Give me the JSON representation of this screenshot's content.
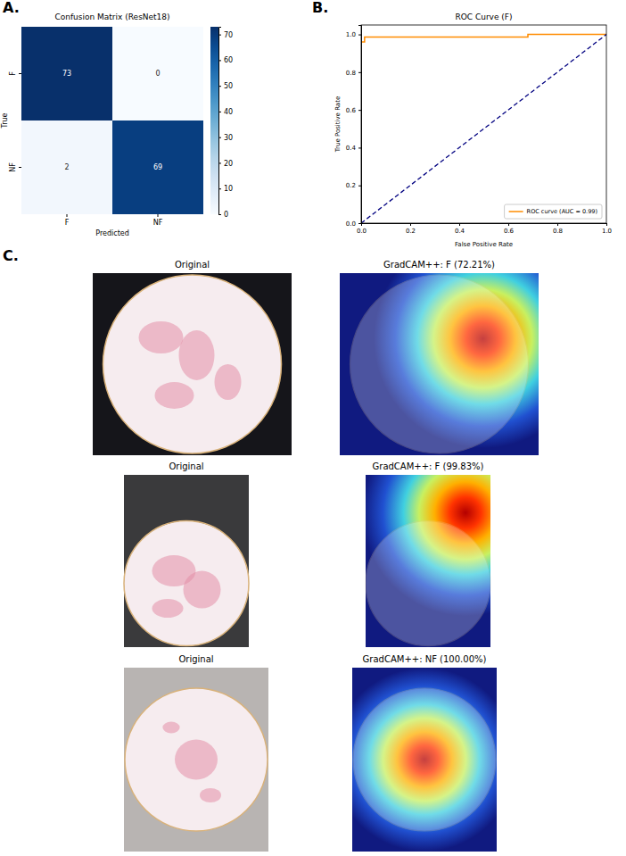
{
  "chart_data": [
    {
      "type": "heatmap",
      "title": "Confusion Matrix (ResNet18)",
      "x_label": "Predicted",
      "y_label": "True",
      "x_categories": [
        "F",
        "NF"
      ],
      "y_categories": [
        "F",
        "NF"
      ],
      "cells": [
        [
          73,
          0
        ],
        [
          2,
          69
        ]
      ],
      "color": "Blues",
      "color_range": [
        0,
        73
      ],
      "color_ticks": [
        0,
        10,
        20,
        30,
        40,
        50,
        60,
        70
      ],
      "data_labels": true
    },
    {
      "type": "line",
      "title": "ROC Curve (F)",
      "x_label": "False Positive Rate",
      "y_label": "True Positive Rate",
      "xlim": [
        0,
        1
      ],
      "ylim": [
        0,
        1.05
      ],
      "xticks": [
        {
          "value": 0,
          "label": "0.0"
        },
        {
          "value": 0.2,
          "label": "0.2"
        },
        {
          "value": 0.4,
          "label": "0.4"
        },
        {
          "value": 0.6,
          "label": "0.6"
        },
        {
          "value": 0.8,
          "label": "0.8"
        },
        {
          "value": 1,
          "label": "1.0"
        }
      ],
      "yticks": [
        {
          "value": 0,
          "label": "0.0"
        },
        {
          "value": 0.2,
          "label": "0.2"
        },
        {
          "value": 0.4,
          "label": "0.4"
        },
        {
          "value": 0.6,
          "label": "0.6"
        },
        {
          "value": 0.8,
          "label": "0.8"
        },
        {
          "value": 1,
          "label": "1.0"
        }
      ],
      "legend": "lower right",
      "series": [
        {
          "name": "ROC curve (AUC = 0.99)",
          "color": "#ff8c00",
          "line_style": "solid",
          "x": [
            0,
            0,
            0.014,
            0.014,
            0.68,
            0.68,
            1
          ],
          "values": [
            0,
            0.96,
            0.96,
            0.986,
            0.986,
            1,
            1
          ]
        },
        {
          "color": "#000080",
          "line_style": "dashed",
          "x": [
            0,
            1
          ],
          "values": [
            0,
            1
          ]
        }
      ]
    }
  ],
  "figure": {
    "panel_labels": [
      "A.",
      "B.",
      "C."
    ],
    "image_rows": [
      {
        "original": "Original",
        "gradcam": "GradCAM++: F (72.21%)"
      },
      {
        "original": "Original",
        "gradcam": "GradCAM++: F (99.83%)"
      },
      {
        "original": "Original",
        "gradcam": "GradCAM++: NF (100.00%)"
      }
    ]
  }
}
